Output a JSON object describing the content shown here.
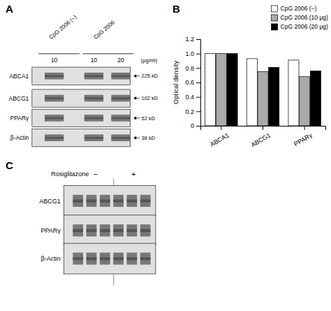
{
  "chart_data": [
    {
      "type": "blot",
      "title": "A",
      "categories": [
        "ABCA1",
        "ABCG1",
        "PPARγ",
        "β-Actin"
      ],
      "annotations": [
        "CpG 2006 (−)",
        "CpG 2006",
        "10",
        "10",
        "20",
        "(μg/ml)",
        "225 kD",
        "102 kD",
        "52 kD",
        "38 kD"
      ]
    },
    {
      "type": "bar",
      "title": "B",
      "categories": [
        "ABCA1",
        "ABCG1",
        "PPARγ"
      ],
      "series": [
        {
          "name": "CpG 2006 (−)",
          "color": "white",
          "values": [
            1.0,
            0.93,
            0.91
          ]
        },
        {
          "name": "CpG 2006 (10 μg)",
          "color": "#aaaaaa",
          "values": [
            1.0,
            0.75,
            0.68
          ]
        },
        {
          "name": "CpG 2006 (20 μg)",
          "color": "black",
          "values": [
            1.0,
            0.81,
            0.76
          ]
        }
      ],
      "ylabel": "Optical density",
      "ylim": [
        0,
        1.2
      ],
      "yticks": [
        0,
        0.2,
        0.4,
        0.6,
        0.8,
        {
          "value": 1.0,
          "label": "1.0"
        },
        1.2
      ],
      "legend": "upper right",
      "grid": false
    },
    {
      "type": "blot",
      "title": "C",
      "categories": [
        "ABCG1",
        "PPARγ",
        "β-Actin"
      ],
      "annotations": [
        "Rosiglitazone",
        "−",
        "+"
      ]
    }
  ]
}
